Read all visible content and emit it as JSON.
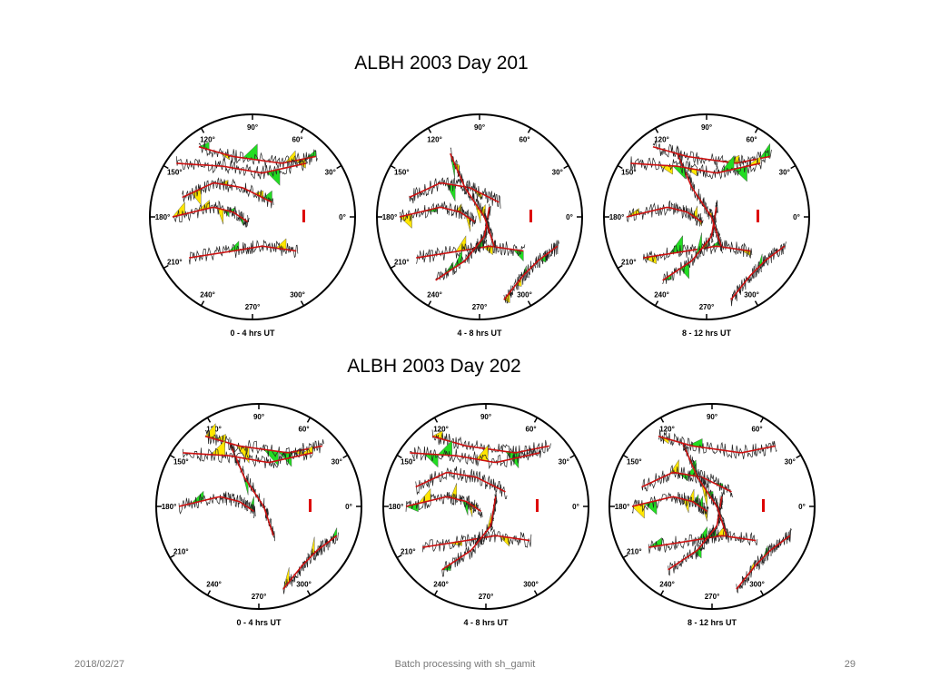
{
  "slide": {
    "title_day201": "ALBH 2003 Day 201",
    "title_day202": "ALBH 2003 Day 202",
    "footer_date": "2018/02/27",
    "footer_center": "Batch processing with sh_gamit",
    "page_number": "29"
  },
  "azimuth_labels": [
    "90°",
    "60°",
    "30°",
    "0°",
    "300°",
    "270°",
    "240°",
    "210°",
    "180°",
    "150°",
    "120°"
  ],
  "colors": {
    "circle": "#000000",
    "track": "#cc1111",
    "residual": "#222222",
    "fill_positive": "#ffe600",
    "fill_negative": "#22dd22",
    "scale_bar": "#dd0000"
  },
  "plots": [
    {
      "caption": "0 - 4 hrs UT",
      "row": 0
    },
    {
      "caption": "4 - 8 hrs UT",
      "row": 0
    },
    {
      "caption": "8 - 12 hrs UT",
      "row": 0
    },
    {
      "caption": "0 - 4 hrs UT",
      "row": 1
    },
    {
      "caption": "4 - 8 hrs UT",
      "row": 1
    },
    {
      "caption": "8 - 12 hrs UT",
      "row": 1
    }
  ]
}
